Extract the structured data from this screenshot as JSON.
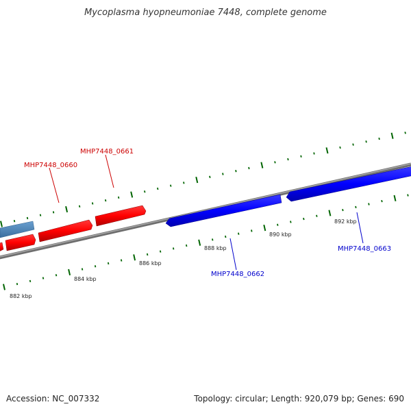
{
  "title": "Mycoplasma hyopneumoniae 7448, complete genome",
  "accession_text": "Accession: NC_007332",
  "summary_text": "Topology: circular; Length: 920,079 bp; Genes: 690",
  "colors": {
    "forward_gene": "#ff0000",
    "reverse_gene": "#0000ff",
    "other_feature": "#4682b4",
    "backbone": "#808080",
    "ticks": "#006400",
    "forward_label": "#cc0000",
    "reverse_label": "#0000cc"
  },
  "scale": {
    "ticks": [
      {
        "label": "882 kbp"
      },
      {
        "label": "884 kbp"
      },
      {
        "label": "886 kbp"
      },
      {
        "label": "888 kbp"
      },
      {
        "label": "890 kbp"
      },
      {
        "label": "892 kbp"
      }
    ]
  },
  "genes": [
    {
      "id": "MHP7448_0660",
      "label": "MHP7448_0660",
      "strand": "forward"
    },
    {
      "id": "MHP7448_0661",
      "label": "MHP7448_0661",
      "strand": "forward"
    },
    {
      "id": "MHP7448_0662",
      "label": "MHP7448_0662",
      "strand": "reverse"
    },
    {
      "id": "MHP7448_0663",
      "label": "MHP7448_0663",
      "strand": "reverse"
    }
  ]
}
